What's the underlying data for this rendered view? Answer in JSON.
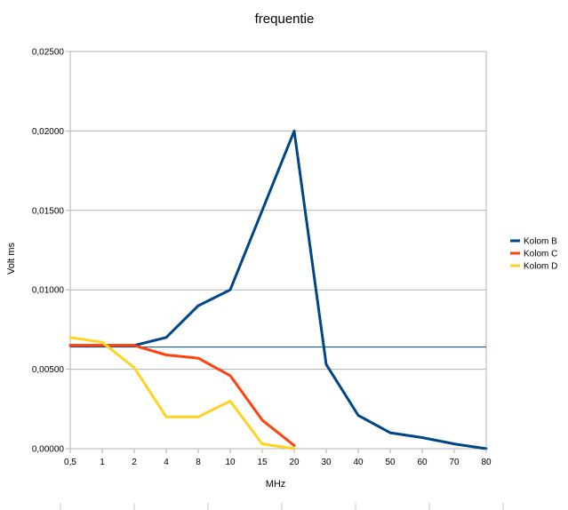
{
  "chart_data": {
    "type": "line",
    "title": "frequentie",
    "xlabel": "MHz",
    "ylabel": "Volt ms",
    "categories": [
      "0,5",
      "1",
      "2",
      "4",
      "8",
      "10",
      "15",
      "20",
      "30",
      "40",
      "50",
      "60",
      "70",
      "80"
    ],
    "yticks": [
      "0,00000",
      "0,00500",
      "0,01000",
      "0,01500",
      "0,02000",
      "0,02500"
    ],
    "ylim": [
      0,
      0.025
    ],
    "grid": true,
    "legend_position": "right",
    "series": [
      {
        "name": "Kolom B",
        "color": "#004586",
        "values": [
          0.0065,
          0.0065,
          0.0065,
          0.007,
          0.009,
          0.01,
          0.015,
          0.02,
          0.0053,
          0.0021,
          0.001,
          0.0007,
          0.0003,
          0.0
        ]
      },
      {
        "name": "Kolom C",
        "color": "#ff420e",
        "values": [
          0.0065,
          0.0065,
          0.0065,
          0.0059,
          0.0057,
          0.0046,
          0.0018,
          0.0002,
          null,
          null,
          null,
          null,
          null,
          null
        ]
      },
      {
        "name": "Kolom D",
        "color": "#ffd320",
        "values": [
          0.007,
          0.0067,
          0.0051,
          0.002,
          0.002,
          0.003,
          0.0003,
          0.0,
          null,
          null,
          null,
          null,
          null,
          null
        ]
      }
    ],
    "reference_line": {
      "value": 0.0064,
      "color": "#004586"
    }
  }
}
